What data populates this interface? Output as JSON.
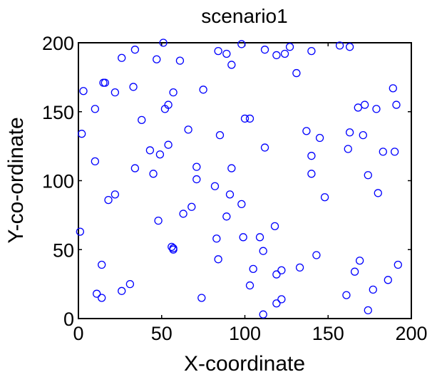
{
  "chart_data": {
    "type": "scatter",
    "title": "scenario1",
    "xlabel": "X-coordinate",
    "ylabel": "Y-co-ordinate",
    "xlim": [
      0,
      200
    ],
    "ylim": [
      0,
      200
    ],
    "xticks": [
      "0",
      "50",
      "100",
      "150",
      "200"
    ],
    "yticks": [
      "0",
      "50",
      "100",
      "150",
      "200"
    ],
    "grid": false,
    "legend": "none",
    "marker": "circle",
    "marker_color": "#0000ff",
    "series": [
      {
        "points": [
          [
            51,
            200
          ],
          [
            98,
            199
          ],
          [
            34,
            195
          ],
          [
            84,
            194
          ],
          [
            89,
            192
          ],
          [
            112,
            195
          ],
          [
            119,
            191
          ],
          [
            124,
            192
          ],
          [
            127,
            197
          ],
          [
            140,
            194
          ],
          [
            157,
            198
          ],
          [
            163,
            197
          ],
          [
            26,
            189
          ],
          [
            47,
            188
          ],
          [
            61,
            187
          ],
          [
            92,
            184
          ],
          [
            131,
            178
          ],
          [
            3,
            165
          ],
          [
            15,
            171
          ],
          [
            16,
            171
          ],
          [
            22,
            164
          ],
          [
            33,
            168
          ],
          [
            57,
            164
          ],
          [
            75,
            166
          ],
          [
            189,
            167
          ],
          [
            10,
            152
          ],
          [
            38,
            144
          ],
          [
            52,
            152
          ],
          [
            54,
            155
          ],
          [
            66,
            137
          ],
          [
            100,
            145
          ],
          [
            103,
            145
          ],
          [
            168,
            153
          ],
          [
            172,
            155
          ],
          [
            179,
            152
          ],
          [
            191,
            155
          ],
          [
            2,
            134
          ],
          [
            43,
            122
          ],
          [
            49,
            119
          ],
          [
            54,
            126
          ],
          [
            85,
            133
          ],
          [
            112,
            124
          ],
          [
            137,
            136
          ],
          [
            145,
            131
          ],
          [
            162,
            123
          ],
          [
            163,
            135
          ],
          [
            171,
            133
          ],
          [
            183,
            121
          ],
          [
            190,
            121
          ],
          [
            10,
            114
          ],
          [
            34,
            109
          ],
          [
            45,
            105
          ],
          [
            71,
            110
          ],
          [
            71,
            101
          ],
          [
            82,
            96
          ],
          [
            92,
            109
          ],
          [
            91,
            90
          ],
          [
            98,
            83
          ],
          [
            140,
            118
          ],
          [
            140,
            105
          ],
          [
            148,
            88
          ],
          [
            174,
            104
          ],
          [
            180,
            91
          ],
          [
            18,
            86
          ],
          [
            22,
            90
          ],
          [
            48,
            71
          ],
          [
            63,
            76
          ],
          [
            68,
            81
          ],
          [
            89,
            74
          ],
          [
            1,
            63
          ],
          [
            56,
            52
          ],
          [
            57,
            51
          ],
          [
            57,
            50
          ],
          [
            83,
            58
          ],
          [
            99,
            59
          ],
          [
            109,
            59
          ],
          [
            111,
            49
          ],
          [
            118,
            67
          ],
          [
            14,
            39
          ],
          [
            84,
            43
          ],
          [
            105,
            36
          ],
          [
            119,
            32
          ],
          [
            122,
            35
          ],
          [
            133,
            37
          ],
          [
            143,
            46
          ],
          [
            166,
            34
          ],
          [
            169,
            42
          ],
          [
            192,
            39
          ],
          [
            11,
            18
          ],
          [
            14,
            15
          ],
          [
            26,
            20
          ],
          [
            31,
            25
          ],
          [
            74,
            15
          ],
          [
            103,
            24
          ],
          [
            111,
            3
          ],
          [
            119,
            11
          ],
          [
            122,
            14
          ],
          [
            161,
            17
          ],
          [
            174,
            6
          ],
          [
            177,
            21
          ],
          [
            186,
            28
          ]
        ]
      }
    ]
  }
}
